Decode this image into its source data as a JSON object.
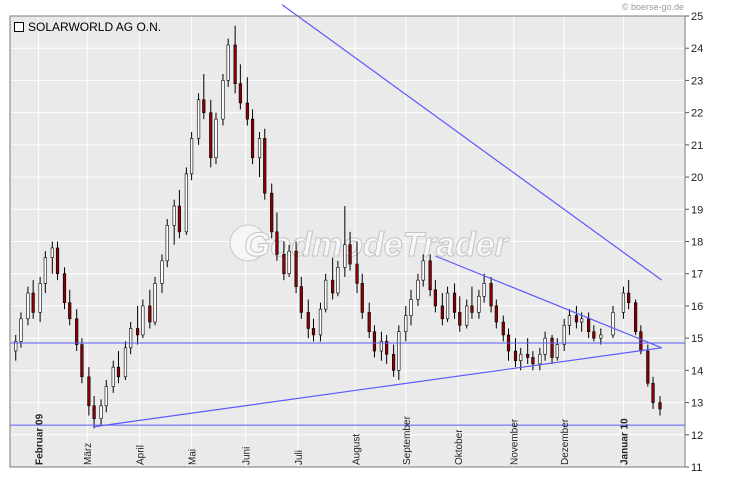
{
  "credit": "© boerse-go.de",
  "watermark": "GodmodeTrader",
  "chart_data": {
    "type": "candlestick",
    "series_name": "SOLARWORLD AG O.N.",
    "ylim": [
      11,
      25
    ],
    "y_ticks": [
      11,
      12,
      13,
      14,
      15,
      16,
      17,
      18,
      19,
      20,
      21,
      22,
      23,
      24,
      25
    ],
    "x_range": [
      "2009-01-19",
      "2010-01-25"
    ],
    "x_ticks": [
      {
        "label": "Februar 09",
        "date": "2009-02-02",
        "bold": true
      },
      {
        "label": "März",
        "date": "2009-03-02",
        "bold": false
      },
      {
        "label": "April",
        "date": "2009-04-01",
        "bold": false
      },
      {
        "label": "Mai",
        "date": "2009-05-01",
        "bold": false
      },
      {
        "label": "Juni",
        "date": "2009-06-01",
        "bold": false
      },
      {
        "label": "Juli",
        "date": "2009-07-01",
        "bold": false
      },
      {
        "label": "August",
        "date": "2009-08-03",
        "bold": false
      },
      {
        "label": "September",
        "date": "2009-09-01",
        "bold": false
      },
      {
        "label": "Oktober",
        "date": "2009-10-01",
        "bold": false
      },
      {
        "label": "November",
        "date": "2009-11-02",
        "bold": false
      },
      {
        "label": "Dezember",
        "date": "2009-12-01",
        "bold": false
      },
      {
        "label": "Januar 10",
        "date": "2010-01-04",
        "bold": true
      }
    ],
    "horizontal_lines": [
      14.85,
      12.3
    ],
    "trend_lines": [
      {
        "from": [
          "2009-03-06",
          12.25
        ],
        "to": [
          "2010-01-26",
          14.7
        ]
      },
      {
        "from": [
          "2009-09-18",
          17.55
        ],
        "to": [
          "2010-01-26",
          14.7
        ]
      },
      {
        "from": [
          "2009-06-22",
          25.35
        ],
        "to": [
          "2010-01-26",
          16.8
        ]
      }
    ],
    "grid": true,
    "legend_position": "top-left",
    "up_color": "#ffffff",
    "down_color": "#8b0000",
    "trendline_color": "#5a5aff",
    "candles": [
      [
        "2009-01-20",
        14.6,
        15.1,
        14.3,
        14.9
      ],
      [
        "2009-01-23",
        14.9,
        15.8,
        14.7,
        15.6
      ],
      [
        "2009-01-27",
        15.6,
        16.6,
        15.4,
        16.4
      ],
      [
        "2009-01-30",
        16.4,
        16.8,
        15.6,
        15.8
      ],
      [
        "2009-02-03",
        15.8,
        16.9,
        15.5,
        16.7
      ],
      [
        "2009-02-06",
        16.7,
        17.7,
        16.4,
        17.5
      ],
      [
        "2009-02-10",
        17.5,
        18.0,
        17.0,
        17.8
      ],
      [
        "2009-02-13",
        17.8,
        18.0,
        16.8,
        17.0
      ],
      [
        "2009-02-17",
        17.0,
        17.2,
        15.9,
        16.1
      ],
      [
        "2009-02-20",
        16.1,
        16.5,
        15.4,
        15.6
      ],
      [
        "2009-02-24",
        15.6,
        15.9,
        14.6,
        14.8
      ],
      [
        "2009-02-27",
        14.8,
        15.0,
        13.6,
        13.8
      ],
      [
        "2009-03-03",
        13.8,
        14.1,
        12.6,
        12.9
      ],
      [
        "2009-03-06",
        12.9,
        13.2,
        12.2,
        12.5
      ],
      [
        "2009-03-10",
        12.5,
        13.1,
        12.3,
        12.9
      ],
      [
        "2009-03-13",
        12.9,
        13.7,
        12.7,
        13.5
      ],
      [
        "2009-03-17",
        13.5,
        14.3,
        13.3,
        14.1
      ],
      [
        "2009-03-20",
        14.1,
        14.6,
        13.6,
        13.8
      ],
      [
        "2009-03-24",
        13.8,
        14.9,
        13.7,
        14.7
      ],
      [
        "2009-03-27",
        14.7,
        15.5,
        14.5,
        15.3
      ],
      [
        "2009-03-31",
        15.3,
        16.0,
        14.8,
        15.1
      ],
      [
        "2009-04-03",
        15.1,
        16.2,
        15.0,
        16.0
      ],
      [
        "2009-04-07",
        16.0,
        16.5,
        15.3,
        15.5
      ],
      [
        "2009-04-10",
        15.5,
        16.9,
        15.4,
        16.7
      ],
      [
        "2009-04-14",
        16.7,
        17.6,
        16.4,
        17.4
      ],
      [
        "2009-04-17",
        17.4,
        18.7,
        17.2,
        18.5
      ],
      [
        "2009-04-21",
        18.5,
        19.3,
        17.9,
        19.1
      ],
      [
        "2009-04-24",
        19.1,
        19.6,
        18.1,
        18.3
      ],
      [
        "2009-04-28",
        18.3,
        20.3,
        18.2,
        20.1
      ],
      [
        "2009-05-01",
        20.1,
        21.4,
        19.9,
        21.2
      ],
      [
        "2009-05-05",
        21.2,
        22.6,
        21.0,
        22.4
      ],
      [
        "2009-05-08",
        22.4,
        23.2,
        21.8,
        22.0
      ],
      [
        "2009-05-12",
        22.0,
        22.4,
        20.3,
        20.6
      ],
      [
        "2009-05-15",
        20.6,
        22.0,
        20.4,
        21.8
      ],
      [
        "2009-05-19",
        21.8,
        23.2,
        21.6,
        23.0
      ],
      [
        "2009-05-22",
        23.0,
        24.3,
        22.8,
        24.1
      ],
      [
        "2009-05-26",
        24.1,
        24.7,
        22.6,
        22.9
      ],
      [
        "2009-05-29",
        22.9,
        23.5,
        22.1,
        22.3
      ],
      [
        "2009-06-02",
        22.3,
        23.1,
        21.6,
        21.8
      ],
      [
        "2009-06-05",
        21.8,
        22.1,
        20.4,
        20.6
      ],
      [
        "2009-06-09",
        20.6,
        21.4,
        20.0,
        21.2
      ],
      [
        "2009-06-12",
        21.2,
        21.5,
        19.3,
        19.5
      ],
      [
        "2009-06-16",
        19.5,
        19.8,
        18.1,
        18.3
      ],
      [
        "2009-06-19",
        18.3,
        18.9,
        17.4,
        17.6
      ],
      [
        "2009-06-23",
        17.6,
        18.0,
        16.8,
        17.0
      ],
      [
        "2009-06-26",
        17.0,
        17.9,
        16.9,
        17.7
      ],
      [
        "2009-06-30",
        17.7,
        18.0,
        16.4,
        16.6
      ],
      [
        "2009-07-03",
        16.6,
        16.9,
        15.6,
        15.8
      ],
      [
        "2009-07-07",
        15.8,
        16.2,
        15.0,
        15.3
      ],
      [
        "2009-07-10",
        15.3,
        15.6,
        14.9,
        15.1
      ],
      [
        "2009-07-14",
        15.1,
        16.1,
        14.9,
        15.9
      ],
      [
        "2009-07-17",
        15.9,
        17.0,
        15.8,
        16.8
      ],
      [
        "2009-07-21",
        16.8,
        17.5,
        16.2,
        16.4
      ],
      [
        "2009-07-24",
        16.4,
        17.4,
        16.3,
        17.2
      ],
      [
        "2009-07-28",
        17.2,
        19.1,
        16.9,
        17.9
      ],
      [
        "2009-07-31",
        17.9,
        18.3,
        17.1,
        17.3
      ],
      [
        "2009-08-04",
        17.3,
        18.0,
        16.4,
        16.7
      ],
      [
        "2009-08-07",
        16.7,
        17.0,
        15.6,
        15.8
      ],
      [
        "2009-08-11",
        15.8,
        16.1,
        15.0,
        15.2
      ],
      [
        "2009-08-14",
        15.2,
        15.4,
        14.4,
        14.6
      ],
      [
        "2009-08-18",
        14.6,
        15.2,
        14.3,
        14.9
      ],
      [
        "2009-08-21",
        14.9,
        15.1,
        14.2,
        14.5
      ],
      [
        "2009-08-25",
        14.5,
        14.8,
        13.8,
        14.0
      ],
      [
        "2009-08-28",
        14.0,
        15.4,
        13.7,
        15.2
      ],
      [
        "2009-09-01",
        15.2,
        16.0,
        14.9,
        15.7
      ],
      [
        "2009-09-04",
        15.7,
        16.5,
        15.4,
        16.2
      ],
      [
        "2009-09-08",
        16.2,
        17.0,
        16.0,
        16.8
      ],
      [
        "2009-09-11",
        16.8,
        17.6,
        16.6,
        17.4
      ],
      [
        "2009-09-15",
        17.4,
        17.6,
        16.3,
        16.5
      ],
      [
        "2009-09-18",
        16.5,
        16.8,
        15.8,
        16.0
      ],
      [
        "2009-09-22",
        16.0,
        16.4,
        15.4,
        15.6
      ],
      [
        "2009-09-25",
        15.6,
        16.6,
        15.5,
        16.4
      ],
      [
        "2009-09-29",
        16.4,
        16.7,
        15.6,
        15.8
      ],
      [
        "2009-10-02",
        15.8,
        16.3,
        15.2,
        15.4
      ],
      [
        "2009-10-06",
        15.4,
        16.2,
        15.3,
        16.0
      ],
      [
        "2009-10-09",
        16.0,
        16.6,
        15.6,
        15.8
      ],
      [
        "2009-10-13",
        15.8,
        16.5,
        15.6,
        16.3
      ],
      [
        "2009-10-16",
        16.3,
        17.0,
        16.1,
        16.7
      ],
      [
        "2009-10-20",
        16.7,
        16.9,
        15.8,
        16.0
      ],
      [
        "2009-10-23",
        16.0,
        16.2,
        15.3,
        15.5
      ],
      [
        "2009-10-27",
        15.5,
        15.7,
        14.9,
        15.1
      ],
      [
        "2009-10-30",
        15.1,
        15.3,
        14.3,
        14.6
      ],
      [
        "2009-11-03",
        14.6,
        15.0,
        14.1,
        14.3
      ],
      [
        "2009-11-06",
        14.3,
        14.7,
        14.0,
        14.5
      ],
      [
        "2009-11-10",
        14.5,
        15.0,
        14.2,
        14.4
      ],
      [
        "2009-11-13",
        14.4,
        14.6,
        14.0,
        14.2
      ],
      [
        "2009-11-17",
        14.2,
        14.7,
        14.0,
        14.5
      ],
      [
        "2009-11-20",
        14.5,
        15.2,
        14.3,
        15.0
      ],
      [
        "2009-11-24",
        15.0,
        15.1,
        14.2,
        14.4
      ],
      [
        "2009-11-27",
        14.4,
        15.0,
        14.3,
        14.8
      ],
      [
        "2009-12-01",
        14.8,
        15.6,
        14.6,
        15.4
      ],
      [
        "2009-12-04",
        15.4,
        15.9,
        15.1,
        15.7
      ],
      [
        "2009-12-08",
        15.7,
        16.0,
        15.3,
        15.5
      ],
      [
        "2009-12-11",
        15.5,
        15.8,
        15.2,
        15.6
      ],
      [
        "2009-12-15",
        15.6,
        15.8,
        15.0,
        15.2
      ],
      [
        "2009-12-18",
        15.2,
        15.4,
        14.9,
        15.0
      ],
      [
        "2009-12-22",
        15.0,
        15.3,
        14.8,
        15.1
      ],
      [
        "2009-12-29",
        15.1,
        16.0,
        15.0,
        15.8
      ],
      [
        "2010-01-04",
        15.8,
        16.6,
        15.6,
        16.4
      ],
      [
        "2010-01-07",
        16.4,
        16.8,
        15.9,
        16.1
      ],
      [
        "2010-01-11",
        16.1,
        16.2,
        15.1,
        15.2
      ],
      [
        "2010-01-14",
        15.2,
        15.4,
        14.5,
        14.6
      ],
      [
        "2010-01-18",
        14.6,
        14.8,
        13.5,
        13.6
      ],
      [
        "2010-01-21",
        13.6,
        13.8,
        12.8,
        13.0
      ],
      [
        "2010-01-25",
        13.0,
        13.2,
        12.6,
        12.8
      ]
    ]
  }
}
